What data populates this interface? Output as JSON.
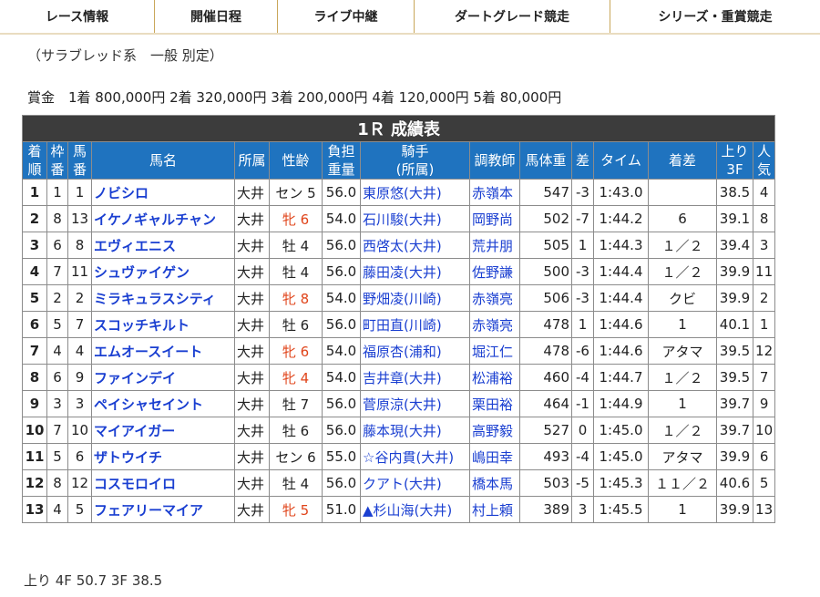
{
  "nav": {
    "tabs": [
      "レース情報",
      "開催日程",
      "ライブ中継",
      "ダートグレード競走",
      "シリーズ・重賞競走"
    ]
  },
  "race": {
    "subtitle": "（サラブレッド系　一般 別定）",
    "prize": "賞金　1着 800,000円  2着 320,000円  3着 200,000円  4着 120,000円  5着 80,000円",
    "table_title": "1Ｒ 成績表",
    "headers": {
      "rank_1": "着",
      "rank_2": "順",
      "frame_1": "枠",
      "frame_2": "番",
      "num_1": "馬",
      "num_2": "番",
      "horse": "馬名",
      "stable": "所属",
      "sexage": "性齢",
      "weight_1": "負担",
      "weight_2": "重量",
      "jockey_1": "騎手",
      "jockey_2": "(所属)",
      "trainer": "調教師",
      "bodyweight": "馬体重",
      "diff": "差",
      "time": "タイム",
      "margin": "着差",
      "last3f_1": "上り",
      "last3f_2": "3F",
      "pop_1": "人",
      "pop_2": "気"
    },
    "rows": [
      {
        "rank": "1",
        "frame": "1",
        "num": "1",
        "horse": "ノビシロ",
        "stable": "大井",
        "sexage": "セン 5",
        "female": false,
        "weight": "56.0",
        "jockey": "東原悠(大井)",
        "trainer": "赤嶺本",
        "bw": "547",
        "diff": "-3",
        "time": "1:43.0",
        "margin": "",
        "last3f": "38.5",
        "pop": "4"
      },
      {
        "rank": "2",
        "frame": "8",
        "num": "13",
        "horse": "イケノギャルチャン",
        "stable": "大井",
        "sexage": "牝 6",
        "female": true,
        "weight": "54.0",
        "jockey": "石川駿(大井)",
        "trainer": "岡野尚",
        "bw": "502",
        "diff": "-7",
        "time": "1:44.2",
        "margin": "6",
        "last3f": "39.1",
        "pop": "8"
      },
      {
        "rank": "3",
        "frame": "6",
        "num": "8",
        "horse": "エヴィエニス",
        "stable": "大井",
        "sexage": "牡 4",
        "female": false,
        "weight": "56.0",
        "jockey": "西啓太(大井)",
        "trainer": "荒井朋",
        "bw": "505",
        "diff": "1",
        "time": "1:44.3",
        "margin": "１／２",
        "last3f": "39.4",
        "pop": "3"
      },
      {
        "rank": "4",
        "frame": "7",
        "num": "11",
        "horse": "シュヴァイゲン",
        "stable": "大井",
        "sexage": "牡 4",
        "female": false,
        "weight": "56.0",
        "jockey": "藤田凌(大井)",
        "trainer": "佐野謙",
        "bw": "500",
        "diff": "-3",
        "time": "1:44.4",
        "margin": "１／２",
        "last3f": "39.9",
        "pop": "11"
      },
      {
        "rank": "5",
        "frame": "2",
        "num": "2",
        "horse": "ミラキュラスシティ",
        "stable": "大井",
        "sexage": "牝 8",
        "female": true,
        "weight": "54.0",
        "jockey": "野畑凌(川崎)",
        "trainer": "赤嶺亮",
        "bw": "506",
        "diff": "-3",
        "time": "1:44.4",
        "margin": "クビ",
        "last3f": "39.9",
        "pop": "2"
      },
      {
        "rank": "6",
        "frame": "5",
        "num": "7",
        "horse": "スコッチキルト",
        "stable": "大井",
        "sexage": "牡 6",
        "female": false,
        "weight": "56.0",
        "jockey": "町田直(川崎)",
        "trainer": "赤嶺亮",
        "bw": "478",
        "diff": "1",
        "time": "1:44.6",
        "margin": "1",
        "last3f": "40.1",
        "pop": "1"
      },
      {
        "rank": "7",
        "frame": "4",
        "num": "4",
        "horse": "エムオースイート",
        "stable": "大井",
        "sexage": "牝 6",
        "female": true,
        "weight": "54.0",
        "jockey": "福原杏(浦和)",
        "trainer": "堀江仁",
        "bw": "478",
        "diff": "-6",
        "time": "1:44.6",
        "margin": "アタマ",
        "last3f": "39.5",
        "pop": "12"
      },
      {
        "rank": "8",
        "frame": "6",
        "num": "9",
        "horse": "ファインデイ",
        "stable": "大井",
        "sexage": "牝 4",
        "female": true,
        "weight": "54.0",
        "jockey": "吉井章(大井)",
        "trainer": "松浦裕",
        "bw": "460",
        "diff": "-4",
        "time": "1:44.7",
        "margin": "１／２",
        "last3f": "39.5",
        "pop": "7"
      },
      {
        "rank": "9",
        "frame": "3",
        "num": "3",
        "horse": "ペイシャセイント",
        "stable": "大井",
        "sexage": "牡 7",
        "female": false,
        "weight": "56.0",
        "jockey": "菅原涼(大井)",
        "trainer": "栗田裕",
        "bw": "464",
        "diff": "-1",
        "time": "1:44.9",
        "margin": "1",
        "last3f": "39.7",
        "pop": "9"
      },
      {
        "rank": "10",
        "frame": "7",
        "num": "10",
        "horse": "マイアイガー",
        "stable": "大井",
        "sexage": "牡 6",
        "female": false,
        "weight": "56.0",
        "jockey": "藤本現(大井)",
        "trainer": "高野毅",
        "bw": "527",
        "diff": "0",
        "time": "1:45.0",
        "margin": "１／２",
        "last3f": "39.7",
        "pop": "10"
      },
      {
        "rank": "11",
        "frame": "5",
        "num": "6",
        "horse": "ザトウイチ",
        "stable": "大井",
        "sexage": "セン 6",
        "female": false,
        "weight": "55.0",
        "jockey": "☆谷内貫(大井)",
        "trainer": "嶋田幸",
        "bw": "493",
        "diff": "-4",
        "time": "1:45.0",
        "margin": "アタマ",
        "last3f": "39.9",
        "pop": "6"
      },
      {
        "rank": "12",
        "frame": "8",
        "num": "12",
        "horse": "コスモロイロ",
        "stable": "大井",
        "sexage": "牡 4",
        "female": false,
        "weight": "56.0",
        "jockey": "クアト(大井)",
        "trainer": "橋本馬",
        "bw": "503",
        "diff": "-5",
        "time": "1:45.3",
        "margin": "１１／２",
        "last3f": "40.6",
        "pop": "5"
      },
      {
        "rank": "13",
        "frame": "4",
        "num": "5",
        "horse": "フェアリーマイア",
        "stable": "大井",
        "sexage": "牝 5",
        "female": true,
        "weight": "51.0",
        "jockey": "▲杉山海(大井)",
        "trainer": "村上頼",
        "bw": "389",
        "diff": "3",
        "time": "1:45.5",
        "margin": "1",
        "last3f": "39.9",
        "pop": "13"
      }
    ],
    "footnote": "上り 4F 50.7 3F 38.5"
  },
  "colors": {
    "header_blue": "#1f73bf",
    "title_dark": "#3c3c3c",
    "link_blue": "#1a3fd1",
    "female_orange": "#e0441a",
    "tab_border_gold": "#c9a75a"
  }
}
